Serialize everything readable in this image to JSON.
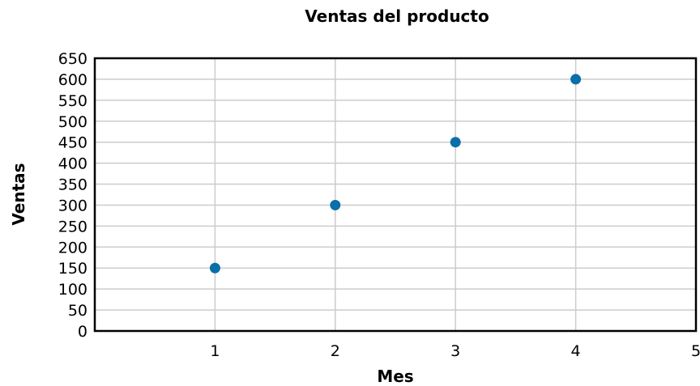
{
  "chart_data": {
    "type": "scatter",
    "title": "Ventas del producto",
    "xlabel": "Mes",
    "ylabel": "Ventas",
    "x": [
      1,
      2,
      3,
      4
    ],
    "y": [
      150,
      300,
      450,
      600
    ],
    "xlim": [
      0,
      5
    ],
    "ylim": [
      0,
      650
    ],
    "x_ticks": [
      1,
      2,
      3,
      4,
      5
    ],
    "y_ticks": [
      0,
      50,
      100,
      150,
      200,
      250,
      300,
      350,
      400,
      450,
      500,
      550,
      600,
      650
    ],
    "grid": true,
    "marker_color": "#0a6fa8"
  }
}
